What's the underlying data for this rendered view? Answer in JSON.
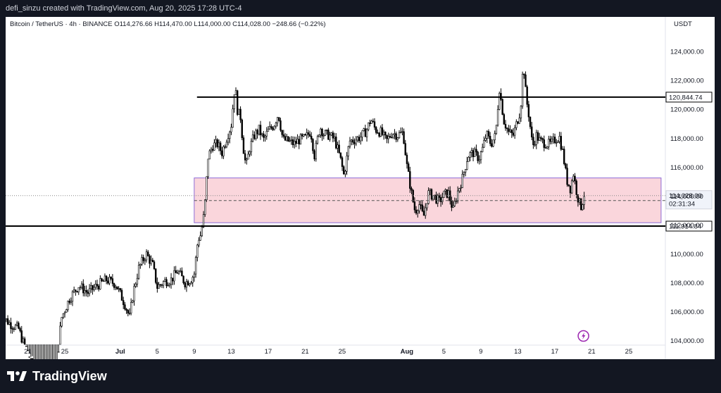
{
  "topbar": {
    "text": "defi_sinzu created with TradingView.com, Aug 20, 2025 17:28 UTC-4"
  },
  "header": {
    "symbol": "Bitcoin / TetherUS · 4h · BINANCE",
    "open": "O114,276.66",
    "high": "H114,470.00",
    "low": "L114,000.00",
    "close": "C114,028.00",
    "change": "−248.66 (−0.22%)"
  },
  "currency": "USDT",
  "brand": {
    "name": "TradingView"
  },
  "colors": {
    "zone_fill": "#fad6dc",
    "zone_border": "#8e6bd6",
    "level_line": "#000000",
    "candle": "#000000"
  },
  "chart_data": {
    "type": "candlestick",
    "interval": "4h",
    "ylim": [
      102700,
      126400
    ],
    "y_ticks": [
      104000,
      106000,
      108000,
      110000,
      112000,
      114000,
      116000,
      118000,
      120000,
      122000,
      124000
    ],
    "y_tick_labels": [
      "104,000.00",
      "106,000.00",
      "108,000.00",
      "110,000.00",
      "112,000.00",
      "114,000.00",
      "116,000.00",
      "118,000.00",
      "120,000.00",
      "122,000.00",
      "124,000.00"
    ],
    "x_ticks": [
      {
        "day": 21,
        "label": "21"
      },
      {
        "day": 25,
        "label": "25"
      },
      {
        "day": 31,
        "label": "Jul"
      },
      {
        "day": 35,
        "label": "5"
      },
      {
        "day": 39,
        "label": "9"
      },
      {
        "day": 43,
        "label": "13"
      },
      {
        "day": 47,
        "label": "17"
      },
      {
        "day": 51,
        "label": "21"
      },
      {
        "day": 55,
        "label": "25"
      },
      {
        "day": 62,
        "label": "Aug"
      },
      {
        "day": 66,
        "label": "5"
      },
      {
        "day": 70,
        "label": "9"
      },
      {
        "day": 74,
        "label": "13"
      },
      {
        "day": 78,
        "label": "17"
      },
      {
        "day": 82,
        "label": "21"
      },
      {
        "day": 86,
        "label": "25"
      }
    ],
    "key_points": [
      [
        18,
        105800
      ],
      [
        19,
        105200
      ],
      [
        20,
        104800
      ],
      [
        21,
        102900
      ],
      [
        22,
        101500
      ],
      [
        23,
        100500
      ],
      [
        24,
        101000
      ],
      [
        24.6,
        105500
      ],
      [
        25.5,
        106900
      ],
      [
        26.5,
        107800
      ],
      [
        27.5,
        107300
      ],
      [
        28.5,
        107800
      ],
      [
        29.5,
        108200
      ],
      [
        30.5,
        107900
      ],
      [
        31.5,
        106500
      ],
      [
        32,
        105600
      ],
      [
        32.4,
        107300
      ],
      [
        33,
        109000
      ],
      [
        33.8,
        110000
      ],
      [
        34.5,
        109200
      ],
      [
        35,
        107700
      ],
      [
        35.8,
        108100
      ],
      [
        36.5,
        108200
      ],
      [
        37.2,
        108800
      ],
      [
        38,
        108000
      ],
      [
        38.6,
        108200
      ],
      [
        39,
        108600
      ],
      [
        39.4,
        111000
      ],
      [
        39.7,
        111300
      ],
      [
        40.1,
        112900
      ],
      [
        40.5,
        116700
      ],
      [
        41,
        117500
      ],
      [
        41.5,
        117600
      ],
      [
        42,
        117000
      ],
      [
        42.6,
        118200
      ],
      [
        43,
        118900
      ],
      [
        43.4,
        121700
      ],
      [
        43.7,
        119800
      ],
      [
        44,
        119500
      ],
      [
        44.3,
        117400
      ],
      [
        44.6,
        116000
      ],
      [
        45,
        117300
      ],
      [
        45.5,
        118200
      ],
      [
        46,
        118600
      ],
      [
        46.5,
        117900
      ],
      [
        47,
        118500
      ],
      [
        47.6,
        118900
      ],
      [
        48.1,
        119700
      ],
      [
        48.6,
        117900
      ],
      [
        49.2,
        117800
      ],
      [
        49.8,
        117600
      ],
      [
        50.4,
        117900
      ],
      [
        51,
        118000
      ],
      [
        51.6,
        118500
      ],
      [
        52,
        116800
      ],
      [
        52.6,
        118800
      ],
      [
        53,
        118300
      ],
      [
        53.6,
        118200
      ],
      [
        54.2,
        117900
      ],
      [
        54.8,
        116600
      ],
      [
        55.2,
        115400
      ],
      [
        55.8,
        117800
      ],
      [
        56.4,
        117900
      ],
      [
        57,
        118100
      ],
      [
        57.6,
        118500
      ],
      [
        58.1,
        119300
      ],
      [
        58.6,
        118600
      ],
      [
        59.2,
        118400
      ],
      [
        59.8,
        117800
      ],
      [
        60.4,
        118400
      ],
      [
        61,
        118200
      ],
      [
        61.6,
        118400
      ],
      [
        62,
        116100
      ],
      [
        62.5,
        114200
      ],
      [
        62.9,
        112900
      ],
      [
        63.3,
        113500
      ],
      [
        63.8,
        112500
      ],
      [
        64.3,
        114200
      ],
      [
        64.9,
        114000
      ],
      [
        65.5,
        113600
      ],
      [
        66,
        114100
      ],
      [
        66.5,
        114200
      ],
      [
        67,
        113000
      ],
      [
        67.5,
        114300
      ],
      [
        68,
        115200
      ],
      [
        68.6,
        116800
      ],
      [
        69.2,
        117000
      ],
      [
        69.8,
        116600
      ],
      [
        70.2,
        117300
      ],
      [
        70.6,
        118300
      ],
      [
        71.1,
        117600
      ],
      [
        71.6,
        118200
      ],
      [
        72,
        121500
      ],
      [
        72.5,
        119200
      ],
      [
        73,
        118400
      ],
      [
        73.5,
        118200
      ],
      [
        74,
        119300
      ],
      [
        74.3,
        120000
      ],
      [
        74.6,
        123300
      ],
      [
        74.9,
        120800
      ],
      [
        75.2,
        119600
      ],
      [
        75.6,
        117400
      ],
      [
        76,
        118200
      ],
      [
        76.4,
        117800
      ],
      [
        76.8,
        117700
      ],
      [
        77.2,
        117600
      ],
      [
        77.6,
        117600
      ],
      [
        78,
        117900
      ],
      [
        78.5,
        118100
      ],
      [
        78.9,
        116900
      ],
      [
        79.3,
        115100
      ],
      [
        79.7,
        114500
      ],
      [
        80,
        115600
      ],
      [
        80.3,
        114500
      ],
      [
        80.6,
        113600
      ],
      [
        80.9,
        113200
      ],
      [
        81.1,
        114000
      ],
      [
        81.3,
        114300
      ]
    ],
    "levels": [
      {
        "name": "resistance",
        "value": 120844.74,
        "label": "120,844.74"
      },
      {
        "name": "support",
        "value": 111914.84,
        "label": "111,914.84"
      }
    ],
    "zone": {
      "from_day": 39,
      "to_day": 89.5,
      "top": 115250,
      "bottom": 112150
    },
    "last_price": {
      "value": 114028.0,
      "label": "114,028.00",
      "countdown": "02:31:34"
    }
  }
}
